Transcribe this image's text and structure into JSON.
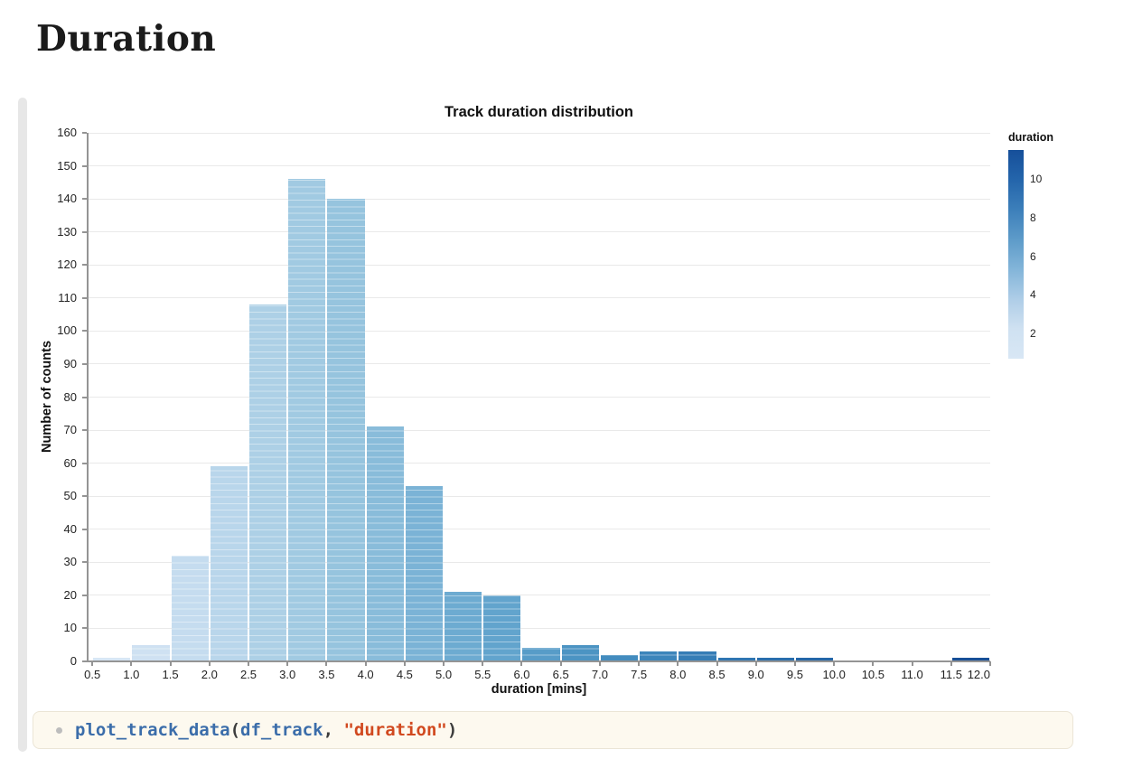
{
  "page": {
    "title": "Duration"
  },
  "chart_data": {
    "type": "bar",
    "subtype": "histogram",
    "title": "Track duration distribution",
    "xlabel": "duration [mins]",
    "ylabel": "Number of counts",
    "bin_width": 0.5,
    "bin_starts": [
      0.5,
      1.0,
      1.5,
      2.0,
      2.5,
      3.0,
      3.5,
      4.0,
      4.5,
      5.0,
      5.5,
      6.0,
      6.5,
      7.0,
      7.5,
      8.0,
      8.5,
      9.0,
      9.5,
      10.0,
      10.5,
      11.0,
      11.5
    ],
    "counts": [
      1,
      5,
      32,
      59,
      108,
      146,
      140,
      71,
      53,
      21,
      20,
      4,
      5,
      2,
      3,
      3,
      1,
      1,
      1,
      0,
      0,
      0,
      1
    ],
    "bar_colors": [
      "#d8e7f5",
      "#cfe1f2",
      "#c5dcef",
      "#b9d6eb",
      "#add0e6",
      "#a1cae2",
      "#96c4de",
      "#89bcda",
      "#7bb3d6",
      "#6dabd1",
      "#62a4cd",
      "#579cc8",
      "#4c94c3",
      "#438cbf",
      "#3c85bb",
      "#357db6",
      "#2f76b2",
      "#296ead",
      "#2466a8",
      "#1f5fa3",
      "#1b589e",
      "#175199",
      "#174f97"
    ],
    "xlim": [
      0.44,
      12.0
    ],
    "ylim": [
      0,
      160
    ],
    "ytick_step": 10,
    "xticks": [
      0.5,
      1.0,
      1.5,
      2.0,
      2.5,
      3.0,
      3.5,
      4.0,
      4.5,
      5.0,
      5.5,
      6.0,
      6.5,
      7.0,
      7.5,
      8.0,
      8.5,
      9.0,
      9.5,
      10.0,
      10.5,
      11.0,
      11.5,
      12.0
    ],
    "grid": "horizontal",
    "legend_position": "right",
    "colorbar": {
      "title": "duration",
      "ticks": [
        10,
        8,
        6,
        4,
        2
      ],
      "domain": [
        0.7,
        11.5
      ],
      "gradient": [
        "#164f9a",
        "#2465ab",
        "#3c7fba",
        "#5d9bc9",
        "#83b5d9",
        "#aecde7",
        "#cfe1f1",
        "#d8e7f5"
      ]
    }
  },
  "code_cell": {
    "prompt_icon": "circle-bullet",
    "colors": {
      "fn": "#3b6daa",
      "p": "#3c3c3c",
      "str": "#d1491f"
    },
    "tokens": [
      {
        "text": "plot_track_data",
        "style": "fn"
      },
      {
        "text": "(",
        "style": "p"
      },
      {
        "text": "df_track",
        "style": "fn"
      },
      {
        "text": ",",
        "style": "p"
      },
      {
        "text": " ",
        "style": "p"
      },
      {
        "text": "\"duration\"",
        "style": "str"
      },
      {
        "text": ")",
        "style": "p"
      }
    ]
  }
}
